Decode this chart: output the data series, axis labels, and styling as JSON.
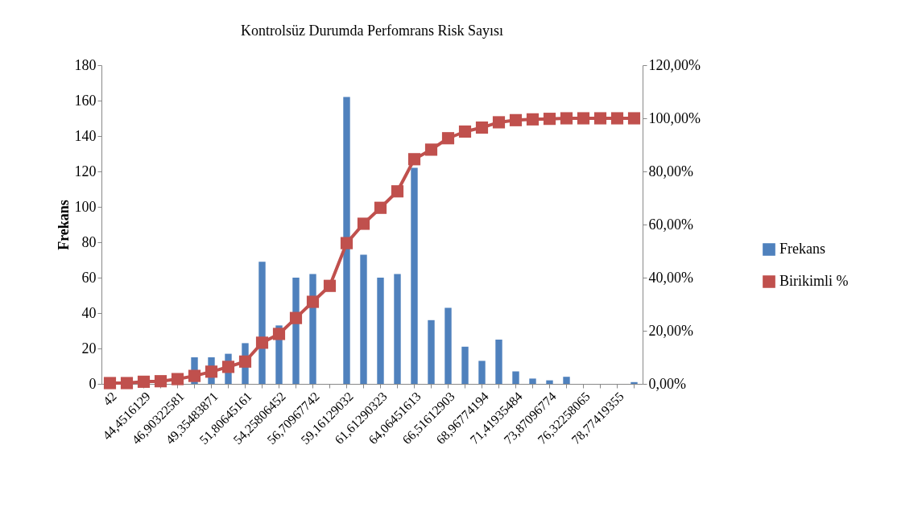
{
  "chart_data": {
    "type": "bar",
    "title": "Kontrolsüz Durumda Perfomrans Risk Sayısı",
    "ylabel": "Frekans",
    "categories": [
      "42",
      null,
      "44,4516129",
      null,
      "46,90322581",
      null,
      "49,35483871",
      null,
      "51,80645161",
      null,
      "54,25806452",
      null,
      "56,70967742",
      null,
      "59,16129032",
      null,
      "61,61290323",
      null,
      "64,06451613",
      null,
      "66,51612903",
      null,
      "68,96774194",
      null,
      "71,41935484",
      null,
      "73,87096774",
      null,
      "76,32258065",
      null,
      "78,77419355",
      null
    ],
    "series": [
      {
        "name": "Frekans",
        "color": "#4f81bd",
        "values": [
          null,
          null,
          null,
          null,
          null,
          15,
          15,
          17,
          23,
          69,
          33,
          60,
          62,
          null,
          162,
          73,
          60,
          62,
          122,
          36,
          43,
          21,
          13,
          25,
          7,
          3,
          2,
          4,
          0,
          0,
          0,
          1
        ]
      },
      {
        "name": "Birikimli %",
        "type": "line",
        "axis": "y2",
        "color": "#c0504d",
        "values": [
          0.3,
          0.3,
          0.8,
          1,
          1.8,
          3,
          4.6,
          6.4,
          8.4,
          15.5,
          18.8,
          24.8,
          30.9,
          36.9,
          53,
          60.3,
          66.3,
          72.5,
          84.6,
          88.2,
          92.5,
          95,
          96.5,
          98.5,
          99.3,
          99.6,
          99.8,
          100,
          100,
          100,
          100,
          100
        ]
      }
    ],
    "ylim": [
      0,
      180
    ],
    "yticks": [
      0,
      20,
      40,
      60,
      80,
      100,
      120,
      140,
      160,
      180
    ],
    "y2lim": [
      0,
      120
    ],
    "y2ticks": [
      {
        "value": 0,
        "label": "0,00%"
      },
      {
        "value": 20,
        "label": "20,00%"
      },
      {
        "value": 40,
        "label": "40,00%"
      },
      {
        "value": 60,
        "label": "60,00%"
      },
      {
        "value": 80,
        "label": "80,00%"
      },
      {
        "value": 100,
        "label": "100,00%"
      },
      {
        "value": 120,
        "label": "120,00%"
      }
    ],
    "marker": "square",
    "line_style": "solid",
    "legend": "right",
    "grid": false
  }
}
